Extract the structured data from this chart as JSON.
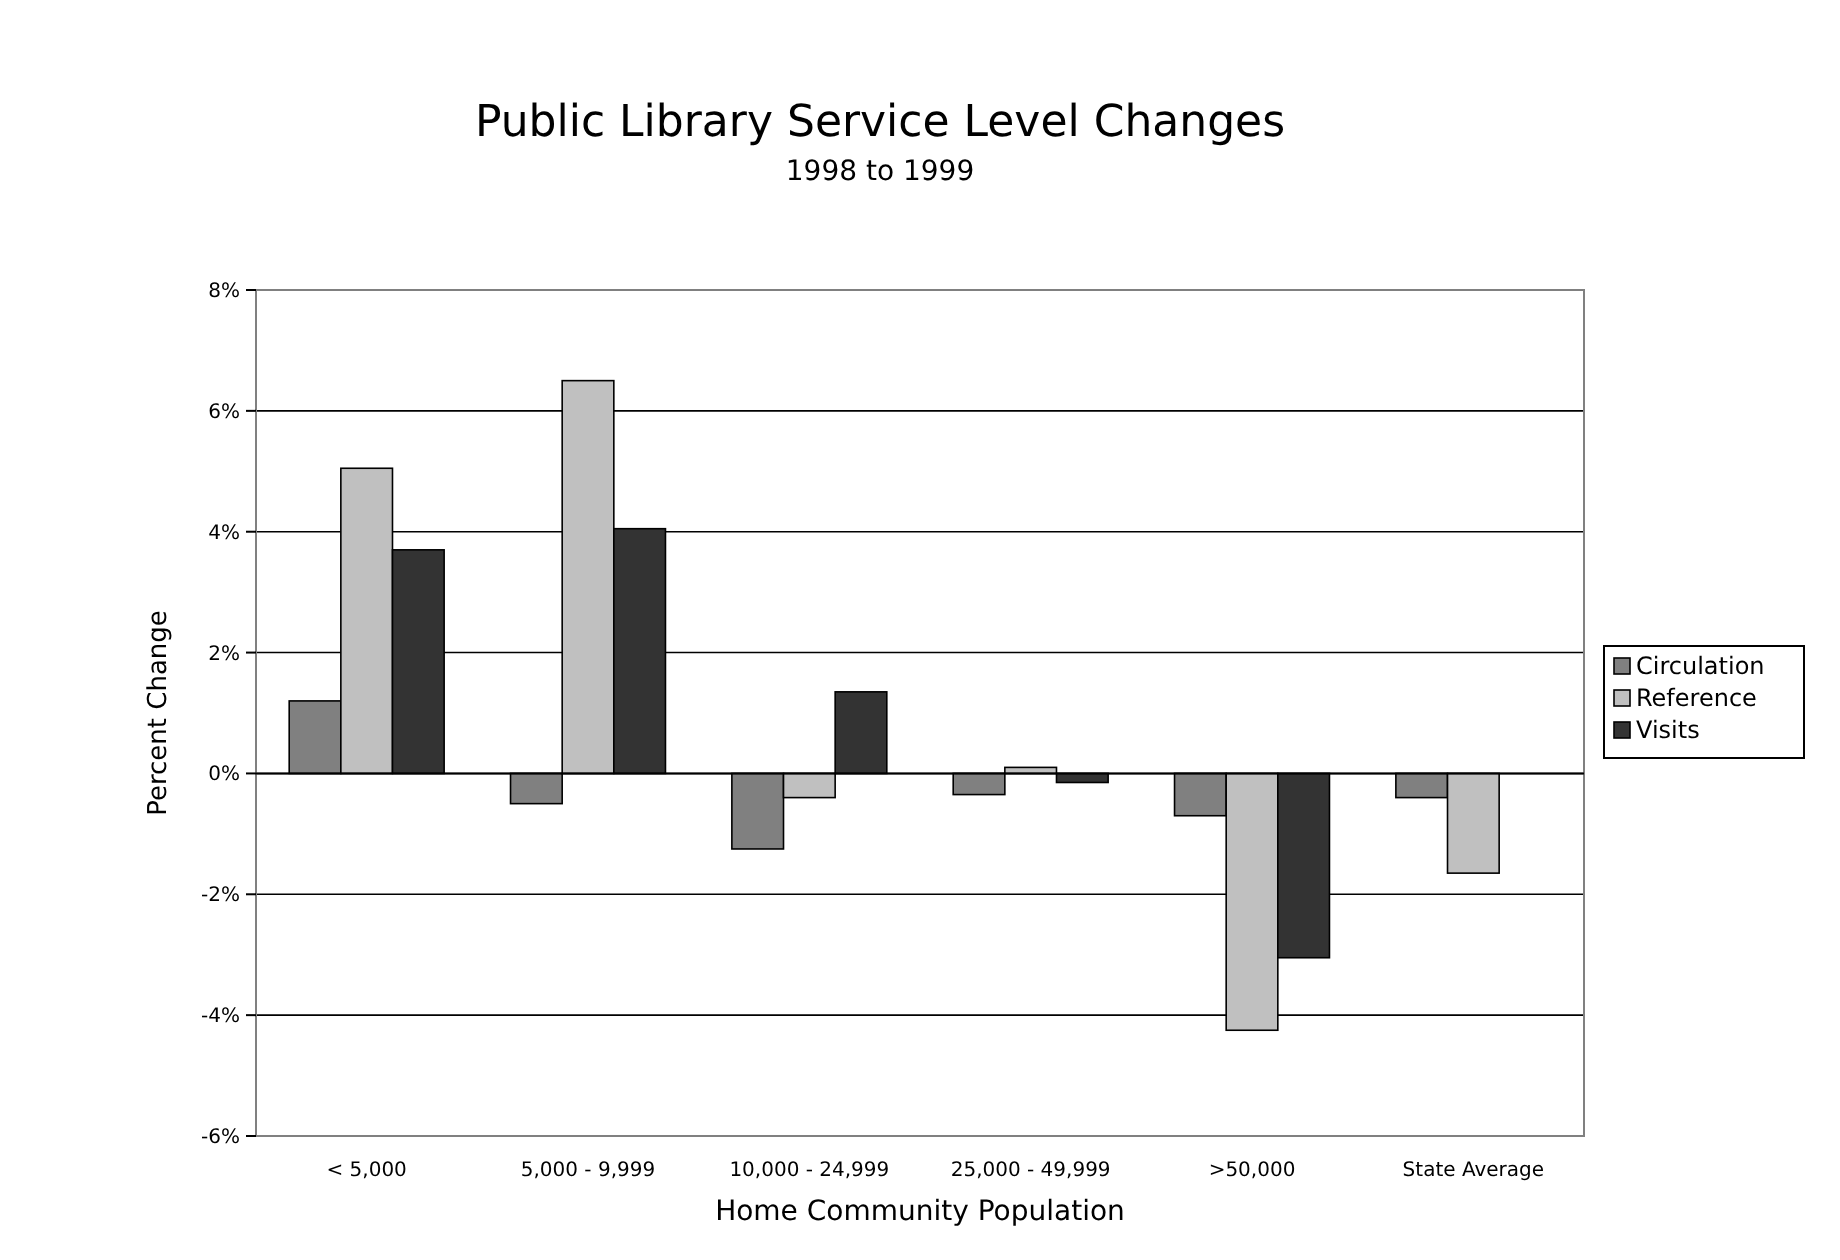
{
  "chart_data": {
    "type": "bar",
    "title": "Public Library Service Level Changes",
    "subtitle": "1998 to 1999",
    "xlabel": "Home Community Population",
    "ylabel": "Percent Change",
    "categories": [
      "< 5,000",
      "5,000 - 9,999",
      "10,000 - 24,999",
      "25,000 - 49,999",
      ">50,000",
      "State Average"
    ],
    "series": [
      {
        "name": "Circulation",
        "color": "#808080",
        "values": [
          1.2,
          -0.5,
          -1.25,
          -0.35,
          -0.7,
          -0.4
        ]
      },
      {
        "name": "Reference",
        "color": "#c0c0c0",
        "values": [
          5.05,
          6.5,
          -0.4,
          0.1,
          -4.25,
          -1.65
        ]
      },
      {
        "name": "Visits",
        "color": "#333333",
        "values": [
          3.7,
          4.05,
          1.35,
          -0.15,
          -3.05,
          null
        ]
      }
    ],
    "ylim": [
      -6,
      8
    ],
    "yticks": [
      {
        "value": -6,
        "label": "-6%"
      },
      {
        "value": -4,
        "label": "-4%"
      },
      {
        "value": -2,
        "label": "-2%"
      },
      {
        "value": 0,
        "label": "0%"
      },
      {
        "value": 2,
        "label": "2%"
      },
      {
        "value": 4,
        "label": "4%"
      },
      {
        "value": 6,
        "label": "6%"
      },
      {
        "value": 8,
        "label": "8%"
      }
    ],
    "grid": "y",
    "legend": "right"
  }
}
